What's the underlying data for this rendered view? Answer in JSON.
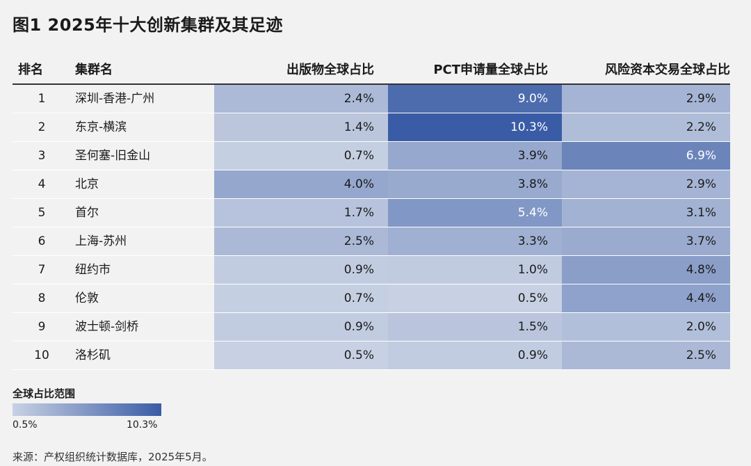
{
  "title": "图1 2025年十大创新集群及其足迹",
  "chart_data": {
    "type": "table",
    "columns": [
      "排名",
      "集群名",
      "出版物全球占比",
      "PCT申请量全球占比",
      "风险资本交易全球占比"
    ],
    "rows": [
      {
        "rank": "1",
        "name": "深圳-香港-广州",
        "values": [
          2.4,
          9.0,
          2.9
        ],
        "labels": [
          "2.4%",
          "9.0%",
          "2.9%"
        ]
      },
      {
        "rank": "2",
        "name": "东京-横滨",
        "values": [
          1.4,
          10.3,
          2.2
        ],
        "labels": [
          "1.4%",
          "10.3%",
          "2.2%"
        ]
      },
      {
        "rank": "3",
        "name": "圣何塞-旧金山",
        "values": [
          0.7,
          3.9,
          6.9
        ],
        "labels": [
          "0.7%",
          "3.9%",
          "6.9%"
        ]
      },
      {
        "rank": "4",
        "name": "北京",
        "values": [
          4.0,
          3.8,
          2.9
        ],
        "labels": [
          "4.0%",
          "3.8%",
          "2.9%"
        ]
      },
      {
        "rank": "5",
        "name": "首尔",
        "values": [
          1.7,
          5.4,
          3.1
        ],
        "labels": [
          "1.7%",
          "5.4%",
          "3.1%"
        ]
      },
      {
        "rank": "6",
        "name": "上海-苏州",
        "values": [
          2.5,
          3.3,
          3.7
        ],
        "labels": [
          "2.5%",
          "3.3%",
          "3.7%"
        ]
      },
      {
        "rank": "7",
        "name": "纽约市",
        "values": [
          0.9,
          1.0,
          4.8
        ],
        "labels": [
          "0.9%",
          "1.0%",
          "4.8%"
        ]
      },
      {
        "rank": "8",
        "name": "伦敦",
        "values": [
          0.7,
          0.5,
          4.4
        ],
        "labels": [
          "0.7%",
          "0.5%",
          "4.4%"
        ]
      },
      {
        "rank": "9",
        "name": "波士顿-剑桥",
        "values": [
          0.9,
          1.5,
          2.0
        ],
        "labels": [
          "0.9%",
          "1.5%",
          "2.0%"
        ]
      },
      {
        "rank": "10",
        "name": "洛杉矶",
        "values": [
          0.5,
          0.9,
          2.5
        ],
        "labels": [
          "0.5%",
          "0.9%",
          "2.5%"
        ]
      }
    ],
    "color_scale": {
      "min": 0.5,
      "max": 10.3,
      "low_color": "#c8d1e3",
      "high_color": "#3a5ca6",
      "light_text": "#ffffff",
      "dark_text": "#1a1a1a"
    }
  },
  "legend": {
    "title": "全球占比范围",
    "min_label": "0.5%",
    "max_label": "10.3%"
  },
  "source": "来源：产权组织统计数据库，2025年5月。"
}
